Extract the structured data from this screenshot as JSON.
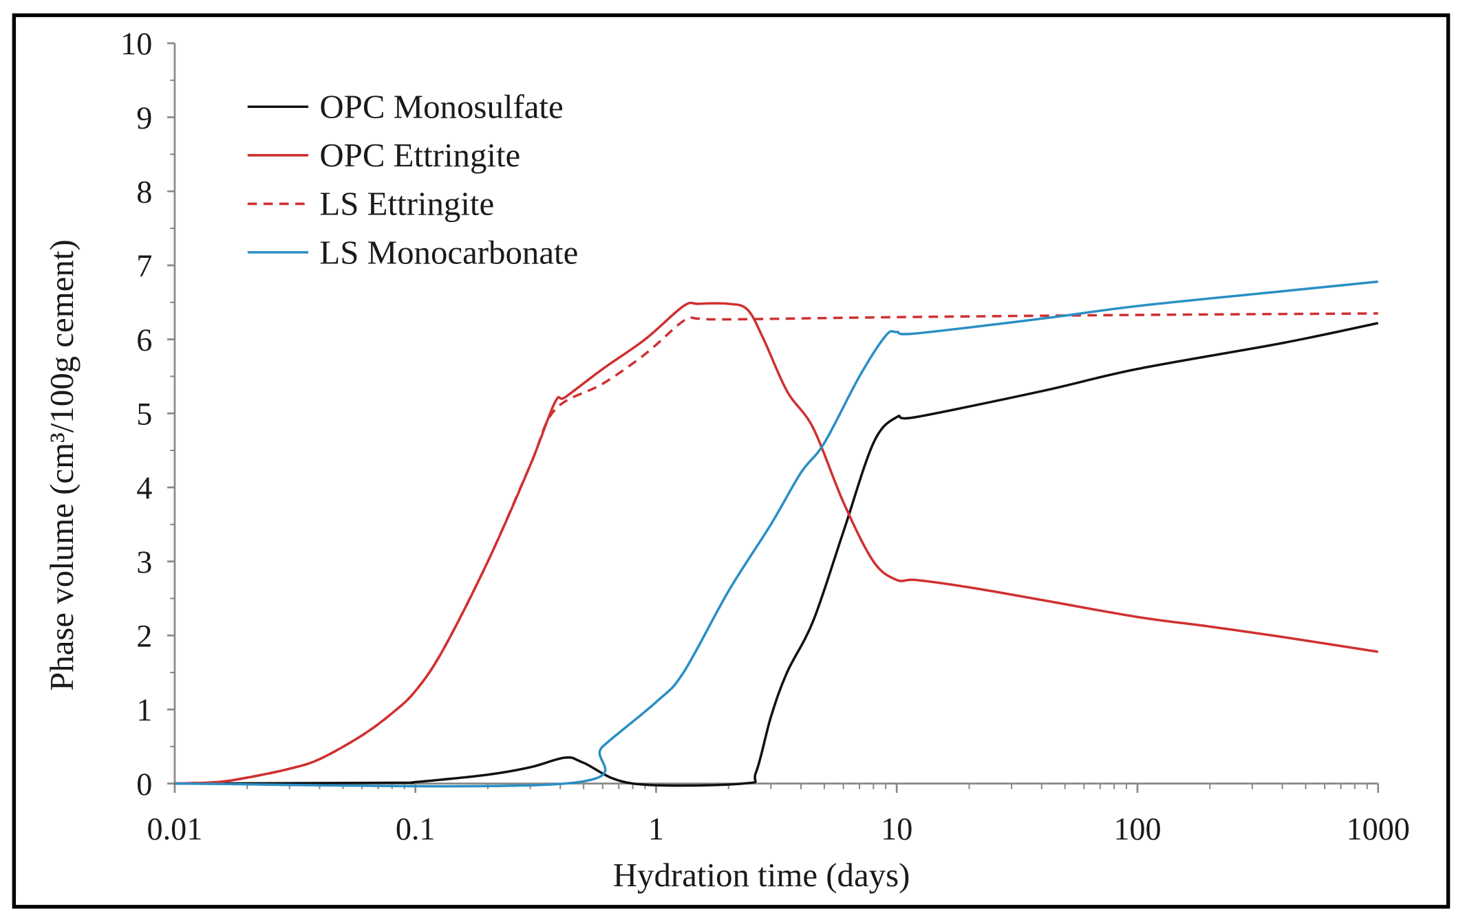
{
  "chart_data": {
    "type": "line",
    "title": "",
    "xlabel": "Hydration time (days)",
    "ylabel": "Phase volume (cm³/100g cement)",
    "xscale": "log",
    "xlim": [
      0.01,
      1000
    ],
    "ylim": [
      0,
      10
    ],
    "xticks": [
      "0.01",
      "0.1",
      "1",
      "10",
      "100",
      "1000"
    ],
    "yticks": [
      "0",
      "1",
      "2",
      "3",
      "4",
      "5",
      "6",
      "7",
      "8",
      "9",
      "10"
    ],
    "grid": false,
    "legend_position": "top-left",
    "series": [
      {
        "name": "OPC Monosulfate",
        "color": "#111111",
        "dash": false,
        "x": [
          0.01,
          0.08,
          0.1,
          0.2,
          0.3,
          0.42,
          0.5,
          0.8,
          2.3,
          2.6,
          3,
          3.5,
          4.5,
          6,
          8,
          10,
          12,
          40,
          100,
          400,
          1000
        ],
        "y": [
          0,
          0.01,
          0.02,
          0.12,
          0.22,
          0.35,
          0.28,
          0,
          0,
          0.15,
          0.9,
          1.5,
          2.2,
          3.4,
          4.6,
          4.95,
          4.95,
          5.3,
          5.6,
          5.95,
          6.22
        ]
      },
      {
        "name": "OPC Ettringite",
        "color": "#d03030",
        "dash": false,
        "x": [
          0.01,
          0.015,
          0.02,
          0.03,
          0.04,
          0.06,
          0.08,
          0.1,
          0.13,
          0.2,
          0.3,
          0.38,
          0.42,
          0.6,
          0.9,
          1.3,
          1.5,
          2,
          2.4,
          2.8,
          3.5,
          4.5,
          6,
          8,
          10,
          12,
          20,
          40,
          100,
          200,
          400,
          1000
        ],
        "y": [
          0,
          0.02,
          0.08,
          0.2,
          0.33,
          0.65,
          0.95,
          1.25,
          1.8,
          3.0,
          4.3,
          5.15,
          5.22,
          5.6,
          6.0,
          6.45,
          6.48,
          6.48,
          6.4,
          6.0,
          5.3,
          4.8,
          3.8,
          3.0,
          2.75,
          2.75,
          2.65,
          2.48,
          2.25,
          2.12,
          1.98,
          1.78
        ]
      },
      {
        "name": "LS Ettringite",
        "color": "#d03030",
        "dash": true,
        "x": [
          0.01,
          0.015,
          0.02,
          0.03,
          0.04,
          0.06,
          0.08,
          0.1,
          0.13,
          0.2,
          0.3,
          0.38,
          0.6,
          0.9,
          1.3,
          1.5,
          2,
          10,
          100,
          1000
        ],
        "y": [
          0,
          0.02,
          0.08,
          0.2,
          0.33,
          0.65,
          0.95,
          1.25,
          1.8,
          3.0,
          4.3,
          5.05,
          5.4,
          5.8,
          6.25,
          6.28,
          6.27,
          6.3,
          6.33,
          6.35
        ]
      },
      {
        "name": "LS Monocarbonate",
        "color": "#2b8fc4",
        "dash": false,
        "x": [
          0.01,
          0.42,
          0.6,
          1,
          1.3,
          2,
          3,
          4,
          5,
          7,
          9,
          10,
          12,
          40,
          100,
          400,
          1000
        ],
        "y": [
          0,
          0,
          0.5,
          1.1,
          1.5,
          2.6,
          3.5,
          4.2,
          4.6,
          5.5,
          6.05,
          6.1,
          6.08,
          6.28,
          6.45,
          6.65,
          6.78
        ]
      }
    ]
  }
}
